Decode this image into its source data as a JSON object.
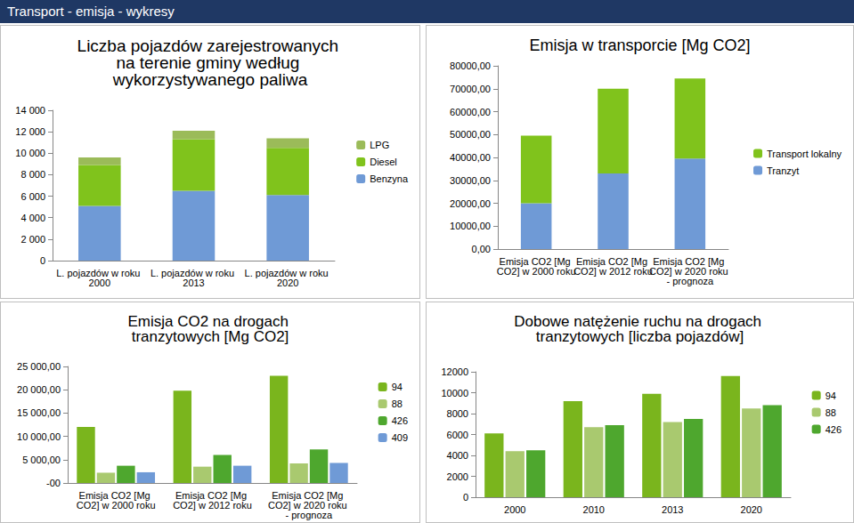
{
  "title": "Transport - emisja - wykresy",
  "chart_data": [
    {
      "type": "bar",
      "title": "Liczba pojazdów zarejestrowanych na terenie gminy według wykorzystywanego paliwa",
      "categories": [
        "L. pojazdów w roku 2000",
        "L. pojazdów w roku 2013",
        "L. pojazdów w roku 2020"
      ],
      "series": [
        {
          "name": "Benzyna",
          "color": "#6f9ad6",
          "values": [
            5100,
            6500,
            6100
          ]
        },
        {
          "name": "Diesel",
          "color": "#80c31c",
          "values": [
            3800,
            4800,
            4400
          ]
        },
        {
          "name": "LPG",
          "color": "#9bbb59",
          "values": [
            700,
            800,
            900
          ]
        }
      ],
      "stacked": true,
      "ylim": [
        0,
        14000
      ],
      "yticks": [
        0,
        {
          "value": 2000,
          "label": "2 000"
        },
        {
          "value": 4000,
          "label": "4 000"
        },
        {
          "value": 6000,
          "label": "6 000"
        },
        {
          "value": 8000,
          "label": "8 000"
        },
        {
          "value": 10000,
          "label": "10 000"
        },
        {
          "value": 12000,
          "label": "12 000"
        },
        {
          "value": 14000,
          "label": "14 000"
        }
      ],
      "grid": false,
      "legend": "right"
    },
    {
      "type": "bar",
      "title": "Emisja w transporcie [Mg CO2]",
      "categories": [
        "Emisja CO2 [Mg CO2] w 2000 roku",
        "Emisja CO2 [Mg CO2] w 2012 roku",
        "Emisja CO2 [Mg CO2] w 2020 roku - prognoza"
      ],
      "series": [
        {
          "name": "Tranzyt",
          "color": "#6f9ad6",
          "values": [
            20000,
            33000,
            39500
          ]
        },
        {
          "name": "Transport lokalny",
          "color": "#80c31c",
          "values": [
            29500,
            37000,
            35000
          ]
        }
      ],
      "stacked": true,
      "ylim": [
        0,
        80000
      ],
      "yticks": [
        {
          "value": 0,
          "label": "0,00"
        },
        {
          "value": 10000,
          "label": "10000,00"
        },
        {
          "value": 20000,
          "label": "20000,00"
        },
        {
          "value": 30000,
          "label": "30000,00"
        },
        {
          "value": 40000,
          "label": "40000,00"
        },
        {
          "value": 50000,
          "label": "50000,00"
        },
        {
          "value": 60000,
          "label": "60000,00"
        },
        {
          "value": 70000,
          "label": "70000,00"
        },
        {
          "value": 80000,
          "label": "80000,00"
        }
      ],
      "grid": false,
      "legend": "right"
    },
    {
      "type": "bar",
      "title": "Emisja CO2 na drogach tranzytowych [Mg CO2]",
      "categories": [
        "Emisja CO2 [Mg CO2] w 2000 roku",
        "Emisja CO2 [Mg CO2] w 2012 roku",
        "Emisja CO2 [Mg CO2] w 2020 roku - prognoza"
      ],
      "series": [
        {
          "name": "94",
          "color": "#7ab51d",
          "values": [
            12000,
            19800,
            23000
          ]
        },
        {
          "name": "88",
          "color": "#a9c96f",
          "values": [
            2200,
            3500,
            4200
          ]
        },
        {
          "name": "426",
          "color": "#4ea72e",
          "values": [
            3700,
            6000,
            7200
          ]
        },
        {
          "name": "409",
          "color": "#6f9ad6",
          "values": [
            2300,
            3700,
            4300
          ]
        }
      ],
      "ylim": [
        0,
        25000
      ],
      "yticks": [
        {
          "value": 0,
          "label": "-00"
        },
        {
          "value": 5000,
          "label": "5 000,00"
        },
        {
          "value": 10000,
          "label": "10 000,00"
        },
        {
          "value": 15000,
          "label": "15 000,00"
        },
        {
          "value": 20000,
          "label": "20 000,00"
        },
        {
          "value": 25000,
          "label": "25 000,00"
        }
      ],
      "grid": false,
      "legend": "right"
    },
    {
      "type": "bar",
      "title": "Dobowe natężenie ruchu na drogach tranzytowych [liczba pojazdów]",
      "categories": [
        "2000",
        "2010",
        "2013",
        "2020"
      ],
      "series": [
        {
          "name": "94",
          "color": "#7ab51d",
          "values": [
            6100,
            9200,
            9900,
            11600
          ]
        },
        {
          "name": "88",
          "color": "#a9c96f",
          "values": [
            4400,
            6700,
            7200,
            8500
          ]
        },
        {
          "name": "426",
          "color": "#4ea72e",
          "values": [
            4500,
            6900,
            7500,
            8800
          ]
        }
      ],
      "ylim": [
        0,
        12000
      ],
      "yticks": [
        0,
        2000,
        4000,
        6000,
        8000,
        10000,
        12000
      ],
      "grid": false,
      "legend": "right"
    }
  ]
}
